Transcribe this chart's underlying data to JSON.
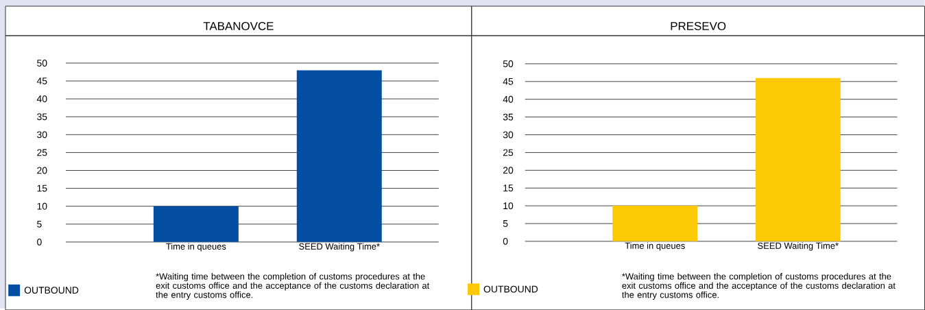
{
  "chart_data": [
    {
      "type": "bar",
      "title": "TABANOVCE",
      "categories": [
        "Time in queues",
        "SEED Waiting Time*"
      ],
      "series": [
        {
          "name": "OUTBOUND",
          "color": "#034ea2",
          "values": [
            10,
            48
          ]
        }
      ],
      "ylim": [
        0,
        50
      ],
      "yticks": [
        0,
        5,
        10,
        15,
        20,
        25,
        30,
        35,
        40,
        45,
        50
      ],
      "grid": "y",
      "legend": "bottom left",
      "annotations": [
        "*Waiting time between the completion of customs procedures at the exit customs office and the acceptance of the customs declaration at the entry customs office."
      ]
    },
    {
      "type": "bar",
      "title": "PRESEVO",
      "categories": [
        "Time in queues",
        "SEED Waiting Time*"
      ],
      "series": [
        {
          "name": "OUTBOUND",
          "color": "#fdc907",
          "values": [
            10,
            46
          ]
        }
      ],
      "ylim": [
        0,
        50
      ],
      "yticks": [
        0,
        5,
        10,
        15,
        20,
        25,
        30,
        35,
        40,
        45,
        50
      ],
      "grid": "y",
      "legend": "bottom left",
      "annotations": [
        "*Waiting time between the completion of customs procedures at the exit customs office and the acceptance of the customs declaration at the entry customs office."
      ]
    }
  ]
}
